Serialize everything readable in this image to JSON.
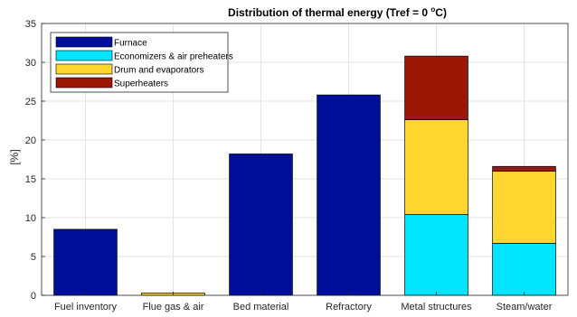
{
  "chart_data": {
    "type": "bar",
    "stacked": true,
    "title_main": "Distribution of thermal energy (Tref = 0 ",
    "title_sup": "o",
    "title_end": "C)",
    "ylabel": "[%]",
    "xlabel": "",
    "ylim": [
      0,
      35
    ],
    "yticks": [
      0,
      5,
      10,
      15,
      20,
      25,
      30,
      35
    ],
    "grid": true,
    "legend_position": "top-left",
    "categories": [
      "Fuel inventory",
      "Flue gas & air",
      "Bed material",
      "Refractory",
      "Metal structures",
      "Steam/water"
    ],
    "series": [
      {
        "name": "Furnace",
        "color": "#000f9a",
        "values": [
          8.5,
          0,
          18.2,
          25.8,
          0,
          0
        ]
      },
      {
        "name": "Economizers & air preheaters",
        "color": "#00e5ff",
        "values": [
          0,
          0,
          0,
          0,
          10.4,
          6.7
        ]
      },
      {
        "name": "Drum and evaporators",
        "color": "#ffd52e",
        "values": [
          0,
          0.3,
          0,
          0,
          12.2,
          9.3
        ]
      },
      {
        "name": "Superheaters",
        "color": "#9d1606",
        "values": [
          0,
          0,
          0,
          0,
          8.2,
          0.6
        ]
      }
    ]
  }
}
